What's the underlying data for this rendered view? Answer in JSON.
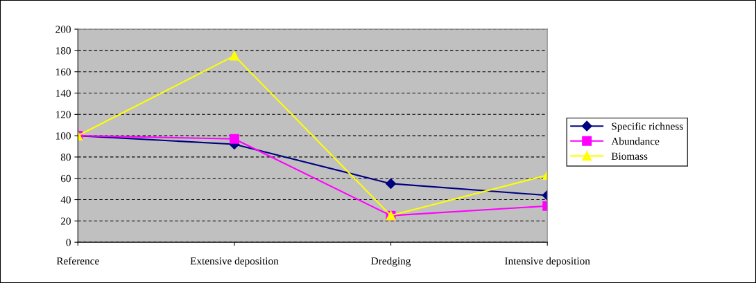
{
  "chart_data": {
    "type": "line",
    "categories": [
      "Reference",
      "Extensive deposition",
      "Dredging",
      "Intensive deposition"
    ],
    "series": [
      {
        "name": "Specific richness",
        "color": "#000080",
        "marker": "diamond",
        "values": [
          100,
          92,
          55,
          44
        ]
      },
      {
        "name": "Abundance",
        "color": "#ff00ff",
        "marker": "square",
        "values": [
          100,
          97,
          25,
          34
        ]
      },
      {
        "name": "Biomass",
        "color": "#ffff00",
        "marker": "triangle",
        "values": [
          100,
          175,
          25,
          63
        ]
      }
    ],
    "ylim": [
      0,
      200
    ],
    "yticks": [
      0,
      20,
      40,
      60,
      80,
      100,
      120,
      140,
      160,
      180,
      200
    ],
    "grid": "y",
    "legend": "right",
    "line_style": "solid"
  }
}
